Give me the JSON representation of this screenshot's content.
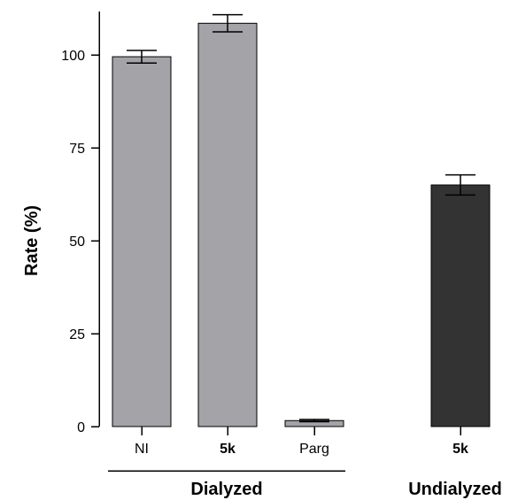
{
  "chart_data": {
    "type": "bar",
    "title": "",
    "xlabel": "",
    "ylabel": "Rate (%)",
    "ylim": [
      0,
      112
    ],
    "yticks": [
      0,
      25,
      50,
      75,
      100
    ],
    "grid": false,
    "bars": [
      {
        "label": "NI",
        "bold_label": false,
        "group": "Dialyzed",
        "value": 99.5,
        "error": 1.7,
        "color": "#a3a3a8"
      },
      {
        "label": "5k",
        "bold_label": true,
        "group": "Dialyzed",
        "value": 108.5,
        "error": 2.3,
        "color": "#a3a3a8"
      },
      {
        "label": "Parg",
        "bold_label": false,
        "group": "Dialyzed",
        "value": 1.6,
        "error": 0.3,
        "color": "#a3a3a8"
      },
      {
        "label": "5k",
        "bold_label": true,
        "group": "Undialyzed",
        "value": 65.0,
        "error": 2.7,
        "color": "#333333"
      }
    ],
    "groups": [
      {
        "name": "Dialyzed",
        "underline": true
      },
      {
        "name": "Undialyzed",
        "underline": false
      }
    ]
  }
}
